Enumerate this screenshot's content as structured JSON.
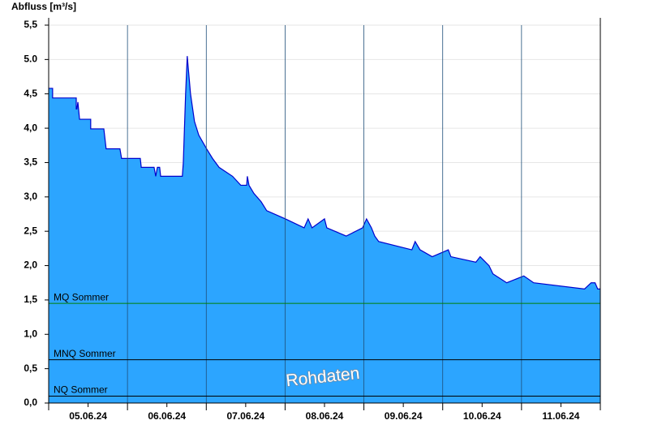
{
  "chart_data": {
    "type": "area",
    "y_axis_label": "Abfluss [m³/s]",
    "color": "#2ca5ff",
    "line_color": "#0000cc",
    "xlim": [
      0,
      168
    ],
    "xticks": [
      {
        "value": 12,
        "label": "05.06.24"
      },
      {
        "value": 36,
        "label": "06.06.24"
      },
      {
        "value": 60,
        "label": "07.06.24"
      },
      {
        "value": 84,
        "label": "08.06.24"
      },
      {
        "value": 108,
        "label": "09.06.24"
      },
      {
        "value": 132,
        "label": "10.06.24"
      },
      {
        "value": 156,
        "label": "11.06.24"
      }
    ],
    "xgrid": [
      24,
      48,
      72,
      96,
      120,
      144
    ],
    "ylim": [
      0,
      5.5
    ],
    "yticks": [
      {
        "value": 0,
        "label": "0,0"
      },
      {
        "value": 0.5,
        "label": "0,5"
      },
      {
        "value": 1,
        "label": "1,0"
      },
      {
        "value": 1.5,
        "label": "1,5"
      },
      {
        "value": 2,
        "label": "2,0"
      },
      {
        "value": 2.5,
        "label": "2,5"
      },
      {
        "value": 3,
        "label": "3,0"
      },
      {
        "value": 3.5,
        "label": "3,5"
      },
      {
        "value": 4,
        "label": "4,0"
      },
      {
        "value": 4.5,
        "label": "4,5"
      },
      {
        "value": 5,
        "label": "5.0"
      },
      {
        "value": 5.5,
        "label": "5,5"
      }
    ],
    "grid": true,
    "x": [
      0,
      1.2,
      1.2,
      8.4,
      8.4,
      8.6,
      8.9,
      9.1,
      9.4,
      12.8,
      12.8,
      16.8,
      17.5,
      21.7,
      22.2,
      27.9,
      28.2,
      32.1,
      32.6,
      33.1,
      33.8,
      34.1,
      40.7,
      41,
      41.7,
      42.2,
      43.2,
      44.4,
      45.7,
      46.9,
      48.1,
      49.9,
      51.9,
      56,
      58.5,
      60.3,
      60.5,
      61,
      62.5,
      64.7,
      66.4,
      72.1,
      77.8,
      79,
      80.2,
      84,
      84.7,
      90.6,
      95.6,
      96.8,
      98.3,
      99.3,
      100.5,
      110.6,
      111.6,
      113.1,
      116.8,
      121.7,
      122.5,
      130.1,
      131.4,
      134.1,
      135.3,
      139.5,
      144.7,
      147.7,
      163.2,
      165.2,
      166.4,
      167.2,
      168
    ],
    "values": [
      4.58,
      4.58,
      4.44,
      4.44,
      4.28,
      4.28,
      4.38,
      4.28,
      4.13,
      4.13,
      3.99,
      3.99,
      3.7,
      3.7,
      3.56,
      3.56,
      3.43,
      3.43,
      3.3,
      3.43,
      3.43,
      3.3,
      3.3,
      3.5,
      4.5,
      5.05,
      4.5,
      4.1,
      3.9,
      3.8,
      3.7,
      3.56,
      3.43,
      3.3,
      3.17,
      3.17,
      3.3,
      3.17,
      3.05,
      2.93,
      2.8,
      2.68,
      2.55,
      2.68,
      2.55,
      2.68,
      2.55,
      2.43,
      2.55,
      2.68,
      2.55,
      2.43,
      2.35,
      2.23,
      2.35,
      2.23,
      2.13,
      2.23,
      2.13,
      2.05,
      2.13,
      2.0,
      1.88,
      1.75,
      1.85,
      1.75,
      1.66,
      1.75,
      1.75,
      1.66,
      1.66
    ],
    "reference_lines": [
      {
        "label": "MQ Sommer",
        "value": 1.45,
        "color": "#008000"
      },
      {
        "label": "MNQ Sommer",
        "value": 0.63,
        "color": "#000000"
      },
      {
        "label": "NQ Sommer",
        "value": 0.1,
        "color": "#000000"
      }
    ],
    "annotation": "Rohdaten"
  }
}
